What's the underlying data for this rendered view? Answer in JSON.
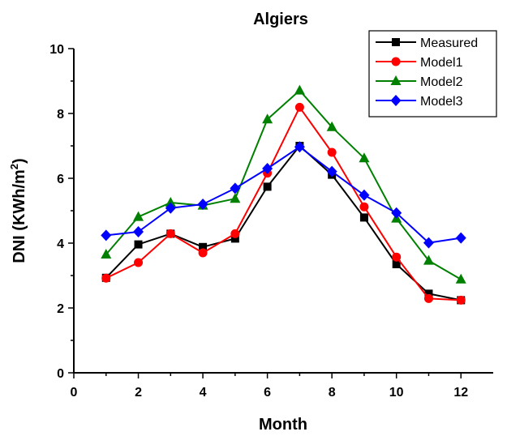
{
  "chart_data": {
    "type": "line",
    "title": "Algiers",
    "xlabel": "Month",
    "ylabel_main": "DNI (KWh/m",
    "ylabel_sup": "2",
    "ylabel_close": ")",
    "xlim": [
      0,
      13
    ],
    "ylim": [
      0,
      10
    ],
    "xticks": [
      0,
      2,
      4,
      6,
      8,
      10,
      12
    ],
    "yticks": [
      0,
      2,
      4,
      6,
      8,
      10
    ],
    "grid": false,
    "legend_position": "top-right",
    "x": [
      1,
      2,
      3,
      4,
      5,
      6,
      7,
      8,
      9,
      10,
      11,
      12
    ],
    "series": [
      {
        "name": "Measured",
        "color": "#000000",
        "marker": "square",
        "values": [
          2.93,
          3.96,
          4.29,
          3.88,
          4.14,
          5.74,
          7.0,
          6.11,
          4.79,
          3.35,
          2.44,
          2.24
        ]
      },
      {
        "name": "Model1",
        "color": "#ff0000",
        "marker": "circle",
        "values": [
          2.92,
          3.4,
          4.29,
          3.7,
          4.29,
          6.16,
          8.19,
          6.8,
          5.12,
          3.57,
          2.29,
          2.24
        ]
      },
      {
        "name": "Model2",
        "color": "#008000",
        "marker": "triangle",
        "values": [
          3.65,
          4.81,
          5.25,
          5.16,
          5.37,
          7.82,
          8.71,
          7.58,
          6.62,
          4.76,
          3.46,
          2.88
        ]
      },
      {
        "name": "Model3",
        "color": "#0000ff",
        "marker": "diamond",
        "values": [
          4.24,
          4.35,
          5.08,
          5.2,
          5.69,
          6.3,
          6.97,
          6.21,
          5.48,
          4.93,
          4.01,
          4.16
        ]
      }
    ]
  }
}
